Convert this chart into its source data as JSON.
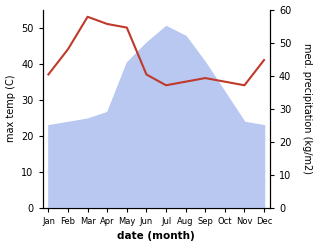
{
  "months": [
    "Jan",
    "Feb",
    "Mar",
    "Apr",
    "May",
    "Jun",
    "Jul",
    "Aug",
    "Sep",
    "Oct",
    "Nov",
    "Dec"
  ],
  "temperature": [
    37,
    44,
    53,
    51,
    50,
    37,
    34,
    35,
    36,
    35,
    34,
    41
  ],
  "precipitation": [
    25,
    26,
    27,
    29,
    44,
    50,
    55,
    52,
    44,
    35,
    26,
    25
  ],
  "temp_color": "#c0392b",
  "precip_color": "#b8c8f0",
  "xlabel": "date (month)",
  "ylabel_left": "max temp (C)",
  "ylabel_right": "med. precipitation (kg/m2)",
  "ylim_left": [
    0,
    55
  ],
  "ylim_right": [
    0,
    60
  ],
  "yticks_left": [
    0,
    10,
    20,
    30,
    40,
    50
  ],
  "yticks_right": [
    0,
    10,
    20,
    30,
    40,
    50,
    60
  ]
}
